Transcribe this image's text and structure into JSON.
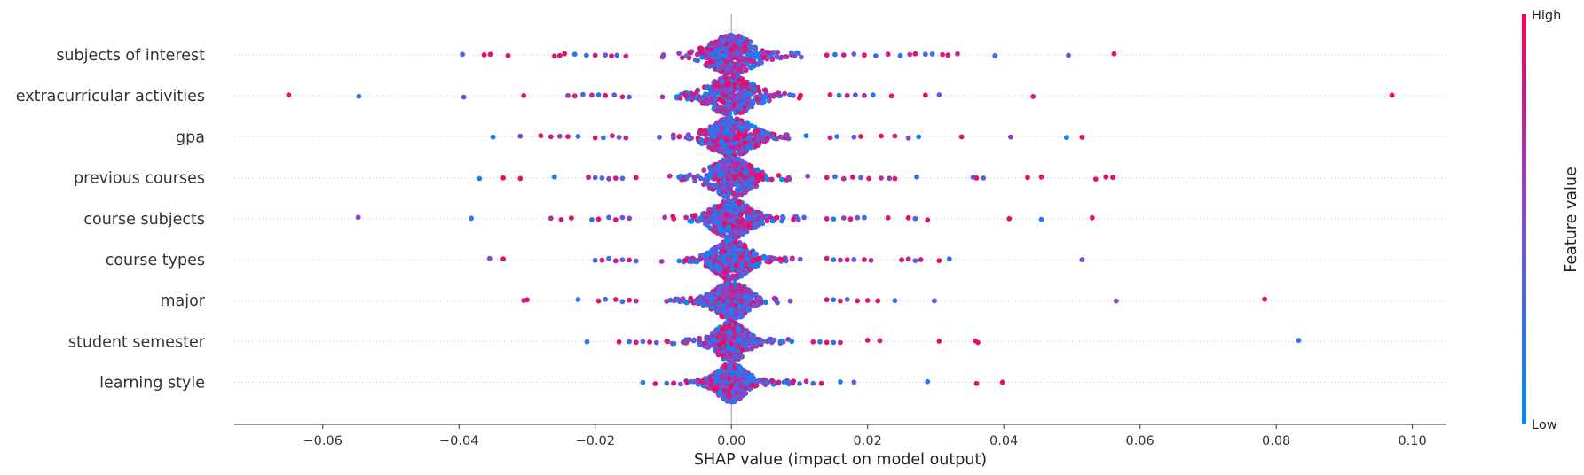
{
  "chart_data": {
    "type": "scatter",
    "subtype": "shap-beeswarm",
    "xlabel": "SHAP value (impact on model output)",
    "xlim": [
      -0.073,
      0.105
    ],
    "x_ticks": [
      -0.06,
      -0.04,
      -0.02,
      0.0,
      0.02,
      0.04,
      0.06,
      0.08,
      0.1
    ],
    "x_tick_labels": [
      "−0.06",
      "−0.04",
      "−0.02",
      "0.00",
      "0.02",
      "0.04",
      "0.06",
      "0.08",
      "0.10"
    ],
    "features": [
      {
        "name": "subjects of interest",
        "points": [
          [
            -0.0395,
            0.3
          ],
          [
            -0.0363,
            0.95
          ],
          [
            -0.0354,
            0.85
          ],
          [
            -0.0328,
            0.9
          ],
          [
            -0.026,
            0.8
          ],
          [
            -0.0252,
            0.85
          ],
          [
            -0.0245,
            0.9
          ],
          [
            -0.023,
            0.15
          ],
          [
            -0.0213,
            0.25
          ],
          [
            -0.02,
            0.85
          ],
          [
            -0.0185,
            0.4
          ],
          [
            -0.0176,
            0.9
          ],
          [
            -0.0168,
            0.3
          ],
          [
            -0.0155,
            0.75
          ],
          [
            0.014,
            0.85
          ],
          [
            0.0152,
            0.2
          ],
          [
            0.0165,
            0.8
          ],
          [
            0.018,
            0.4
          ],
          [
            0.0195,
            0.9
          ],
          [
            0.0212,
            0.25
          ],
          [
            0.023,
            0.85
          ],
          [
            0.0248,
            0.15
          ],
          [
            0.0262,
            0.7
          ],
          [
            0.027,
            0.9
          ],
          [
            0.0285,
            0.3
          ],
          [
            0.0295,
            0.2
          ],
          [
            0.031,
            0.8
          ],
          [
            0.0318,
            0.9
          ],
          [
            0.0332,
            0.75
          ],
          [
            0.0387,
            0.2
          ],
          [
            0.0495,
            0.5
          ],
          [
            0.0562,
            0.9
          ]
        ]
      },
      {
        "name": "extracurricular activities",
        "points": [
          [
            -0.065,
            0.9
          ],
          [
            -0.0547,
            0.2
          ],
          [
            -0.0393,
            0.4
          ],
          [
            -0.0305,
            0.9
          ],
          [
            -0.024,
            0.6
          ],
          [
            -0.023,
            0.9
          ],
          [
            -0.0218,
            0.3
          ],
          [
            -0.0205,
            0.75
          ],
          [
            -0.0195,
            0.2
          ],
          [
            -0.0185,
            0.9
          ],
          [
            -0.0172,
            0.4
          ],
          [
            -0.016,
            0.85
          ],
          [
            -0.015,
            0.3
          ],
          [
            0.0145,
            0.85
          ],
          [
            0.0158,
            0.2
          ],
          [
            0.017,
            0.8
          ],
          [
            0.0182,
            0.4
          ],
          [
            0.0195,
            0.7
          ],
          [
            0.0208,
            0.15
          ],
          [
            0.0235,
            0.9
          ],
          [
            0.0285,
            0.9
          ],
          [
            0.0305,
            0.5
          ],
          [
            0.0443,
            0.85
          ],
          [
            0.097,
            0.95
          ]
        ]
      },
      {
        "name": "gpa",
        "points": [
          [
            -0.035,
            0.1
          ],
          [
            -0.031,
            0.5
          ],
          [
            -0.028,
            0.9
          ],
          [
            -0.0265,
            0.8
          ],
          [
            -0.0252,
            0.6
          ],
          [
            -0.024,
            0.9
          ],
          [
            -0.0225,
            0.3
          ],
          [
            -0.02,
            0.9
          ],
          [
            -0.0188,
            0.2
          ],
          [
            -0.0175,
            0.85
          ],
          [
            -0.0165,
            0.4
          ],
          [
            -0.0155,
            0.8
          ],
          [
            0.0145,
            0.8
          ],
          [
            0.0155,
            0.2
          ],
          [
            0.018,
            0.4
          ],
          [
            0.019,
            0.85
          ],
          [
            0.022,
            0.9
          ],
          [
            0.024,
            0.85
          ],
          [
            0.026,
            0.5
          ],
          [
            0.0275,
            0.1
          ],
          [
            0.0338,
            0.9
          ],
          [
            0.041,
            0.6
          ],
          [
            0.0492,
            0.1
          ],
          [
            0.0515,
            0.95
          ]
        ]
      },
      {
        "name": "previous courses",
        "points": [
          [
            -0.037,
            0.1
          ],
          [
            -0.0335,
            0.95
          ],
          [
            -0.031,
            0.9
          ],
          [
            -0.026,
            0.15
          ],
          [
            -0.021,
            0.85
          ],
          [
            -0.02,
            0.4
          ],
          [
            -0.019,
            0.3
          ],
          [
            -0.018,
            0.6
          ],
          [
            -0.017,
            0.85
          ],
          [
            -0.016,
            0.35
          ],
          [
            -0.014,
            0.9
          ],
          [
            0.014,
            0.85
          ],
          [
            0.0152,
            0.3
          ],
          [
            0.0165,
            0.7
          ],
          [
            0.0178,
            0.85
          ],
          [
            0.019,
            0.4
          ],
          [
            0.0202,
            0.9
          ],
          [
            0.022,
            0.7
          ],
          [
            0.0232,
            0.6
          ],
          [
            0.024,
            0.85
          ],
          [
            0.0272,
            0.2
          ],
          [
            0.0355,
            0.3
          ],
          [
            0.036,
            0.9
          ],
          [
            0.037,
            0.35
          ],
          [
            0.0435,
            0.9
          ],
          [
            0.0455,
            0.85
          ],
          [
            0.0535,
            0.9
          ],
          [
            0.055,
            0.95
          ],
          [
            0.056,
            0.9
          ]
        ]
      },
      {
        "name": "course subjects",
        "points": [
          [
            -0.0548,
            0.55
          ],
          [
            -0.0382,
            0.15
          ],
          [
            -0.0265,
            0.7
          ],
          [
            -0.025,
            0.8
          ],
          [
            -0.0235,
            0.9
          ],
          [
            -0.0205,
            0.2
          ],
          [
            -0.0195,
            0.85
          ],
          [
            -0.018,
            0.3
          ],
          [
            -0.017,
            0.9
          ],
          [
            -0.016,
            0.4
          ],
          [
            -0.015,
            0.6
          ],
          [
            0.014,
            0.85
          ],
          [
            0.015,
            0.2
          ],
          [
            0.0165,
            0.6
          ],
          [
            0.0175,
            0.85
          ],
          [
            0.0185,
            0.4
          ],
          [
            0.0195,
            0.2
          ],
          [
            0.023,
            0.85
          ],
          [
            0.026,
            0.9
          ],
          [
            0.027,
            0.3
          ],
          [
            0.0288,
            0.85
          ],
          [
            0.0408,
            0.9
          ],
          [
            0.0455,
            0.15
          ],
          [
            0.053,
            0.9
          ]
        ]
      },
      {
        "name": "course types",
        "points": [
          [
            -0.0355,
            0.5
          ],
          [
            -0.0335,
            0.9
          ],
          [
            -0.02,
            0.3
          ],
          [
            -0.019,
            0.85
          ],
          [
            -0.018,
            0.2
          ],
          [
            -0.017,
            0.8
          ],
          [
            -0.016,
            0.4
          ],
          [
            -0.015,
            0.85
          ],
          [
            -0.014,
            0.3
          ],
          [
            0.014,
            0.85
          ],
          [
            0.015,
            0.2
          ],
          [
            0.016,
            0.7
          ],
          [
            0.017,
            0.85
          ],
          [
            0.018,
            0.4
          ],
          [
            0.0195,
            0.9
          ],
          [
            0.0205,
            0.7
          ],
          [
            0.025,
            0.85
          ],
          [
            0.026,
            0.8
          ],
          [
            0.027,
            0.35
          ],
          [
            0.0278,
            0.85
          ],
          [
            0.0305,
            0.9
          ],
          [
            0.032,
            0.15
          ],
          [
            0.0515,
            0.5
          ]
        ]
      },
      {
        "name": "major",
        "points": [
          [
            -0.0305,
            0.85
          ],
          [
            -0.03,
            0.8
          ],
          [
            -0.0225,
            0.15
          ],
          [
            -0.0195,
            0.9
          ],
          [
            -0.0185,
            0.2
          ],
          [
            -0.017,
            0.85
          ],
          [
            -0.016,
            0.3
          ],
          [
            -0.015,
            0.9
          ],
          [
            -0.014,
            0.7
          ],
          [
            0.014,
            0.9
          ],
          [
            0.015,
            0.2
          ],
          [
            0.016,
            0.85
          ],
          [
            0.017,
            0.4
          ],
          [
            0.0185,
            0.9
          ],
          [
            0.02,
            0.85
          ],
          [
            0.0215,
            0.9
          ],
          [
            0.024,
            0.2
          ],
          [
            0.0298,
            0.4
          ],
          [
            0.0565,
            0.5
          ],
          [
            0.0783,
            0.9
          ]
        ]
      },
      {
        "name": "student semester",
        "points": [
          [
            -0.0212,
            0.15
          ],
          [
            -0.0165,
            0.9
          ],
          [
            -0.015,
            0.2
          ],
          [
            -0.014,
            0.8
          ],
          [
            -0.013,
            0.3
          ],
          [
            -0.012,
            0.9
          ],
          [
            -0.011,
            0.4
          ],
          [
            -0.0095,
            0.85
          ],
          [
            0.012,
            0.85
          ],
          [
            0.013,
            0.2
          ],
          [
            0.014,
            0.9
          ],
          [
            0.015,
            0.3
          ],
          [
            0.016,
            0.8
          ],
          [
            0.02,
            0.9
          ],
          [
            0.0218,
            0.85
          ],
          [
            0.0305,
            0.9
          ],
          [
            0.0358,
            0.85
          ],
          [
            0.0362,
            0.9
          ],
          [
            0.0833,
            0.15
          ]
        ]
      },
      {
        "name": "learning style",
        "points": [
          [
            -0.013,
            0.15
          ],
          [
            -0.0112,
            0.9
          ],
          [
            -0.0095,
            0.3
          ],
          [
            -0.0085,
            0.85
          ],
          [
            0.009,
            0.85
          ],
          [
            0.01,
            0.2
          ],
          [
            0.011,
            0.8
          ],
          [
            0.012,
            0.3
          ],
          [
            0.0132,
            0.9
          ],
          [
            0.016,
            0.1
          ],
          [
            0.018,
            0.4
          ],
          [
            0.0288,
            0.15
          ],
          [
            0.036,
            0.9
          ],
          [
            0.0398,
            0.95
          ]
        ]
      }
    ],
    "colorbar": {
      "title": "Feature value",
      "high_label": "High",
      "low_label": "Low",
      "low_color": "#008bfb",
      "mid_color": "#7c4dd4",
      "high_color": "#ff0052"
    }
  }
}
